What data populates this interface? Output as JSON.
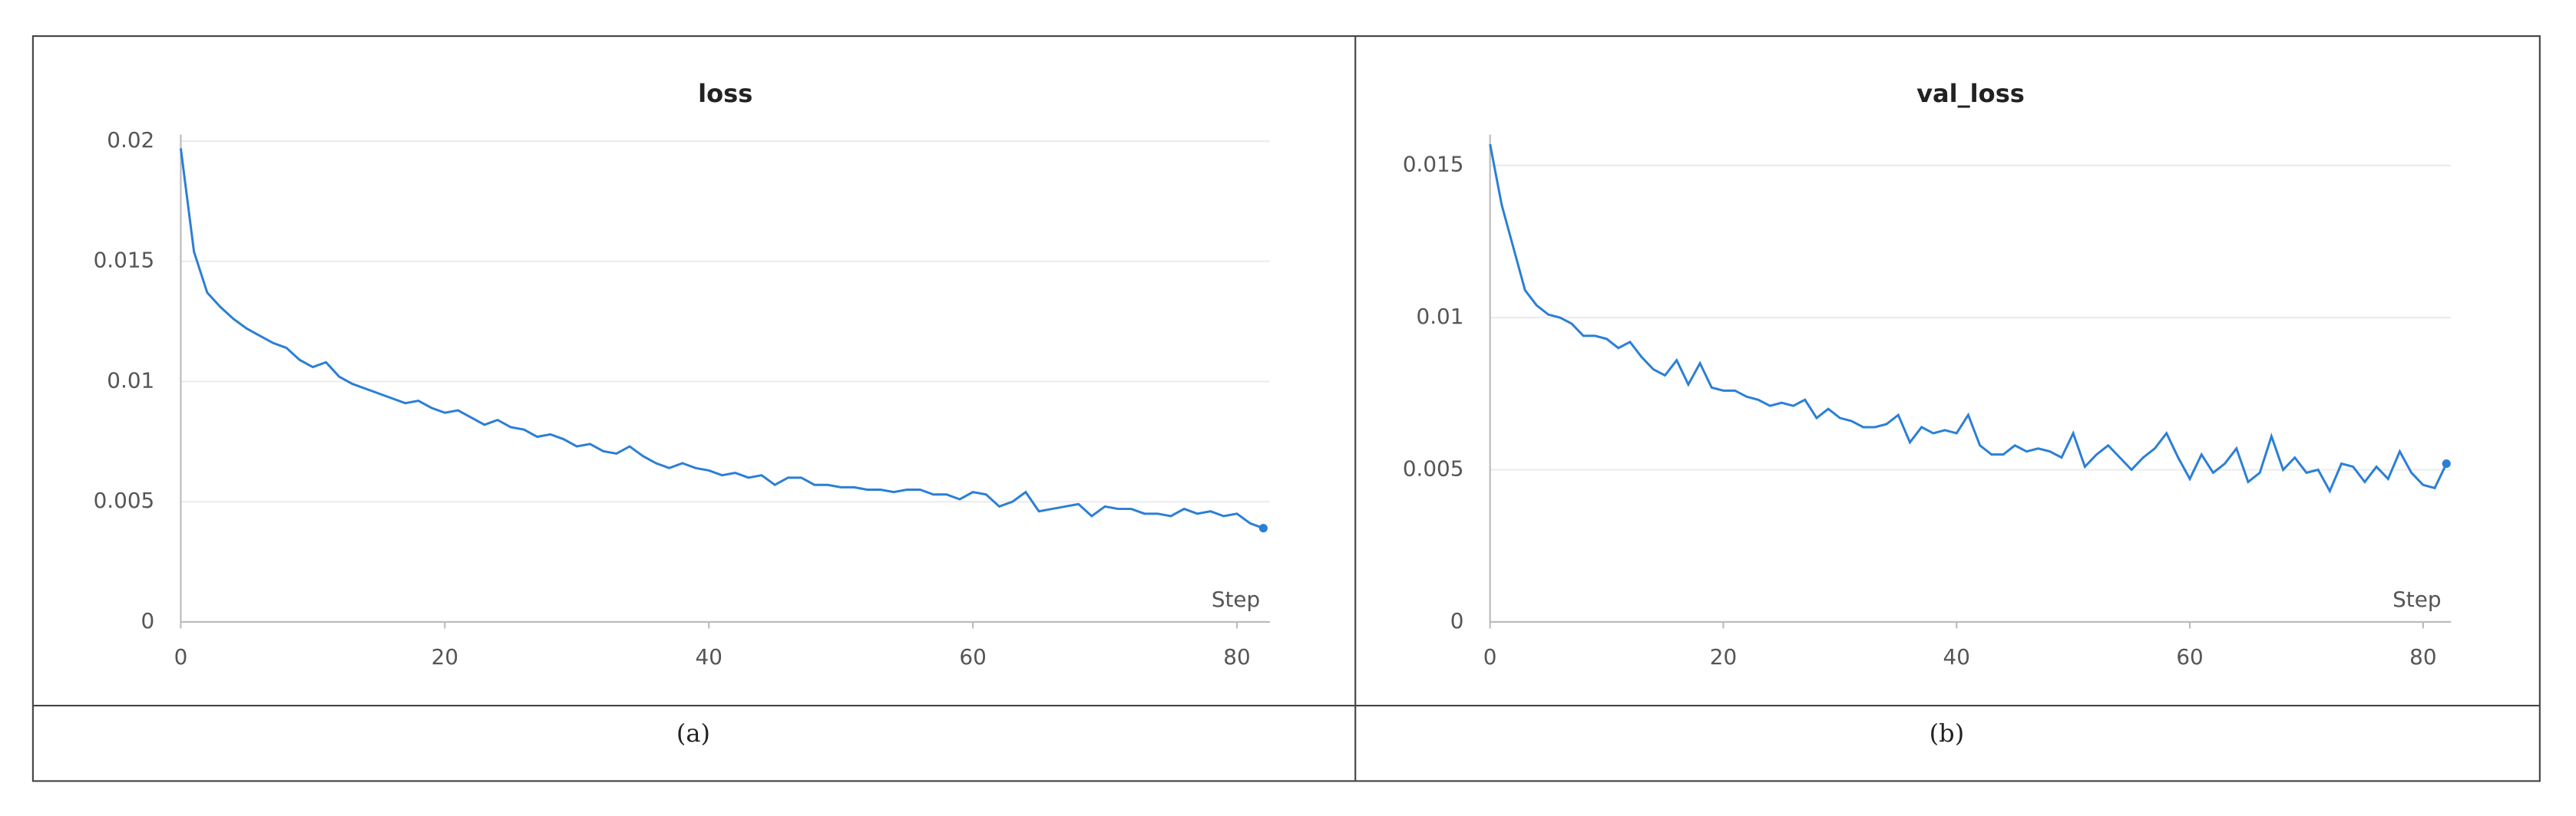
{
  "chart_data": [
    {
      "type": "line",
      "title": "loss",
      "x_label": "Step",
      "caption": "(a)",
      "color": "#2b7fd6",
      "x": [
        0,
        1,
        2,
        3,
        4,
        5,
        6,
        7,
        8,
        9,
        10,
        11,
        12,
        13,
        14,
        15,
        16,
        17,
        18,
        19,
        20,
        21,
        22,
        23,
        24,
        25,
        26,
        27,
        28,
        29,
        30,
        31,
        32,
        33,
        34,
        35,
        36,
        37,
        38,
        39,
        40,
        41,
        42,
        43,
        44,
        45,
        46,
        47,
        48,
        49,
        50,
        51,
        52,
        53,
        54,
        55,
        56,
        57,
        58,
        59,
        60,
        61,
        62,
        63,
        64,
        65,
        66,
        67,
        68,
        69,
        70,
        71,
        72,
        73,
        74,
        75,
        76,
        77,
        78,
        79,
        80,
        81,
        82
      ],
      "values": [
        0.0197,
        0.0154,
        0.0137,
        0.0131,
        0.0126,
        0.0122,
        0.0119,
        0.0116,
        0.0114,
        0.0109,
        0.0106,
        0.0108,
        0.0102,
        0.0099,
        0.0097,
        0.0095,
        0.0093,
        0.0091,
        0.0092,
        0.0089,
        0.0087,
        0.0088,
        0.0085,
        0.0082,
        0.0084,
        0.0081,
        0.008,
        0.0077,
        0.0078,
        0.0076,
        0.0073,
        0.0074,
        0.0071,
        0.007,
        0.0073,
        0.0069,
        0.0066,
        0.0064,
        0.0066,
        0.0064,
        0.0063,
        0.0061,
        0.0062,
        0.006,
        0.0061,
        0.0057,
        0.006,
        0.006,
        0.0057,
        0.0057,
        0.0056,
        0.0056,
        0.0055,
        0.0055,
        0.0054,
        0.0055,
        0.0055,
        0.0053,
        0.0053,
        0.0051,
        0.0054,
        0.0053,
        0.0048,
        0.005,
        0.0054,
        0.0046,
        0.0047,
        0.0048,
        0.0049,
        0.0044,
        0.0048,
        0.0047,
        0.0047,
        0.0045,
        0.0045,
        0.0044,
        0.0047,
        0.0045,
        0.0046,
        0.0044,
        0.0045,
        0.0041,
        0.0039
      ],
      "xlim": [
        0,
        82.5
      ],
      "xticks": [
        0,
        20,
        40,
        60,
        80
      ],
      "ylim": [
        0,
        0.02
      ],
      "yticks": [
        0,
        0.005,
        0.01,
        0.015,
        0.02
      ],
      "grid": true
    },
    {
      "type": "line",
      "title": "val_loss",
      "x_label": "Step",
      "caption": "(b)",
      "color": "#2b7fd6",
      "x": [
        0,
        1,
        2,
        3,
        4,
        5,
        6,
        7,
        8,
        9,
        10,
        11,
        12,
        13,
        14,
        15,
        16,
        17,
        18,
        19,
        20,
        21,
        22,
        23,
        24,
        25,
        26,
        27,
        28,
        29,
        30,
        31,
        32,
        33,
        34,
        35,
        36,
        37,
        38,
        39,
        40,
        41,
        42,
        43,
        44,
        45,
        46,
        47,
        48,
        49,
        50,
        51,
        52,
        53,
        54,
        55,
        56,
        57,
        58,
        59,
        60,
        61,
        62,
        63,
        64,
        65,
        66,
        67,
        68,
        69,
        70,
        71,
        72,
        73,
        74,
        75,
        76,
        77,
        78,
        79,
        80,
        81,
        82
      ],
      "values": [
        0.0157,
        0.0137,
        0.0123,
        0.0109,
        0.0104,
        0.0101,
        0.01,
        0.0098,
        0.0094,
        0.0094,
        0.0093,
        0.009,
        0.0092,
        0.0087,
        0.0083,
        0.0081,
        0.0086,
        0.0078,
        0.0085,
        0.0077,
        0.0076,
        0.0076,
        0.0074,
        0.0073,
        0.0071,
        0.0072,
        0.0071,
        0.0073,
        0.0067,
        0.007,
        0.0067,
        0.0066,
        0.0064,
        0.0064,
        0.0065,
        0.0068,
        0.0059,
        0.0064,
        0.0062,
        0.0063,
        0.0062,
        0.0068,
        0.0058,
        0.0055,
        0.0055,
        0.0058,
        0.0056,
        0.0057,
        0.0056,
        0.0054,
        0.0062,
        0.0051,
        0.0055,
        0.0058,
        0.0054,
        0.005,
        0.0054,
        0.0057,
        0.0062,
        0.0054,
        0.0047,
        0.0055,
        0.0049,
        0.0052,
        0.0057,
        0.0046,
        0.0049,
        0.0061,
        0.005,
        0.0054,
        0.0049,
        0.005,
        0.0043,
        0.0052,
        0.0051,
        0.0046,
        0.0051,
        0.0047,
        0.0056,
        0.0049,
        0.0045,
        0.0044,
        0.0052
      ],
      "xlim": [
        0,
        82.4
      ],
      "xticks": [
        0,
        20,
        40,
        60,
        80
      ],
      "ylim": [
        0,
        0.0158
      ],
      "yticks": [
        0,
        0.005,
        0.01,
        0.015
      ],
      "grid": true
    }
  ]
}
